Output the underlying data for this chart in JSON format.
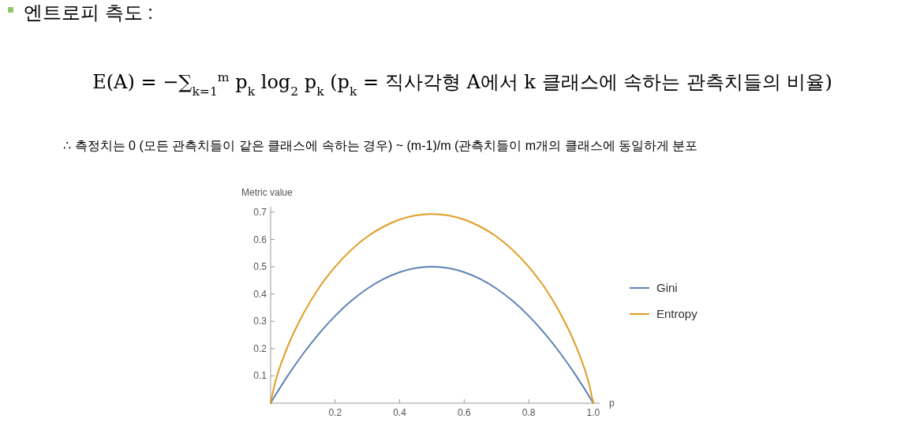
{
  "chart_data": {
    "type": "line",
    "title": "엔트로피 측도 :",
    "annotations": [
      "E(A) = −∑$_{k=1}$$^{m}$ p$_{k}$ log$_{2}$ p$_{k}$  (p$_{k}$ = 직사각형 A에서 k 클래스에 속하는 관측치들의 비율)",
      "∴ 측정치는 0 (모든 관측치들이 같은 클래스에 속하는 경우) ~ (m-1)/m (관측치들이 m개의 클래스에 동일하게 분포"
    ],
    "xlabel": "p",
    "ylabel": "Metric value",
    "x": [
      0,
      0.01,
      0.05,
      0.1,
      0.15,
      0.2,
      0.25,
      0.3,
      0.35,
      0.4,
      0.45,
      0.5,
      0.55,
      0.6,
      0.65,
      0.7,
      0.75,
      0.8,
      0.85,
      0.9,
      0.95,
      0.99,
      1
    ],
    "series": [
      {
        "name": "Gini",
        "color": "#5e81b5",
        "values": [
          0,
          0.02,
          0.095,
          0.18,
          0.255,
          0.32,
          0.375,
          0.42,
          0.455,
          0.48,
          0.495,
          0.5,
          0.495,
          0.48,
          0.455,
          0.42,
          0.375,
          0.32,
          0.255,
          0.18,
          0.095,
          0.02,
          0
        ]
      },
      {
        "name": "Entropy",
        "color": "#e19c24",
        "values": [
          0,
          0.056,
          0.199,
          0.325,
          0.423,
          0.5,
          0.562,
          0.611,
          0.647,
          0.673,
          0.688,
          0.693,
          0.688,
          0.673,
          0.647,
          0.611,
          0.562,
          0.5,
          0.423,
          0.325,
          0.199,
          0.056,
          0
        ]
      }
    ],
    "xlim": [
      0,
      1.02
    ],
    "ylim": [
      0,
      0.72
    ],
    "xticks": [
      {
        "value": 0,
        "label": null
      },
      0.2,
      0.4,
      0.6,
      0.8,
      {
        "value": 1,
        "label": "1.0"
      }
    ],
    "yticks": [
      0.1,
      0.2,
      0.3,
      0.4,
      0.5,
      0.6,
      0.7
    ],
    "legend": "right"
  }
}
